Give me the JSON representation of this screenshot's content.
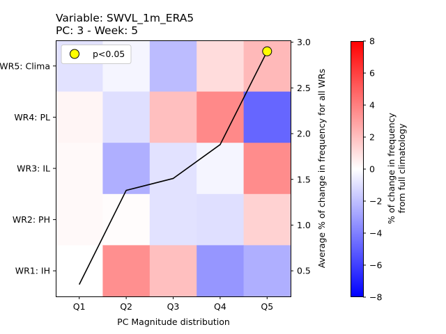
{
  "chart_data": {
    "type": "heatmap",
    "title": "Variable: SWVL_1m_ERA5",
    "subtitle": "PC: 3 - Week: 5",
    "xlabel": "PC Magnitude distribution",
    "ylabel_right": "Average % of change in frequency for all WRs",
    "x_categories": [
      "Q1",
      "Q2",
      "Q3",
      "Q4",
      "Q5"
    ],
    "y_categories": [
      "WR5: Clima",
      "WR4: PL",
      "WR3: IL",
      "WR2: PH",
      "WR1: IH"
    ],
    "values": [
      [
        -0.9,
        -0.3,
        -2.1,
        1.1,
        2.2
      ],
      [
        0.3,
        -1.0,
        2.0,
        3.7,
        -4.8
      ],
      [
        0.2,
        -2.5,
        -0.9,
        -0.3,
        3.6
      ],
      [
        0.2,
        0.1,
        -0.9,
        -1.0,
        1.4
      ],
      [
        0.0,
        3.5,
        2.0,
        -3.3,
        -2.5
      ]
    ],
    "colorbar": {
      "label_line1": "% of change in frequency",
      "label_line2": "from full climatology",
      "min": -8,
      "max": 8,
      "ticks": [
        "8",
        "6",
        "4",
        "2",
        "0",
        "−2",
        "−4",
        "−6",
        "−8"
      ],
      "colormap": "bwr",
      "color_low": "#0000ff",
      "color_mid": "#ffffff",
      "color_high": "#ff0000"
    },
    "line_series": {
      "name": "Average % of change in frequency for all WRs",
      "x": [
        "Q1",
        "Q2",
        "Q3",
        "Q4",
        "Q5"
      ],
      "values": [
        0.35,
        1.38,
        1.51,
        1.88,
        2.9
      ],
      "color": "#000000"
    },
    "right_axis": {
      "range": [
        0.22,
        3.02
      ],
      "ticks": [
        "0.5",
        "1.0",
        "1.5",
        "2.0",
        "2.5",
        "3.0"
      ]
    },
    "significance": {
      "legend_label": "p<0.05",
      "marker_color": "#ffff00",
      "points": [
        {
          "x": "Q5",
          "y": 2.9
        }
      ]
    },
    "legend_placement": "top-left",
    "grid": false
  }
}
